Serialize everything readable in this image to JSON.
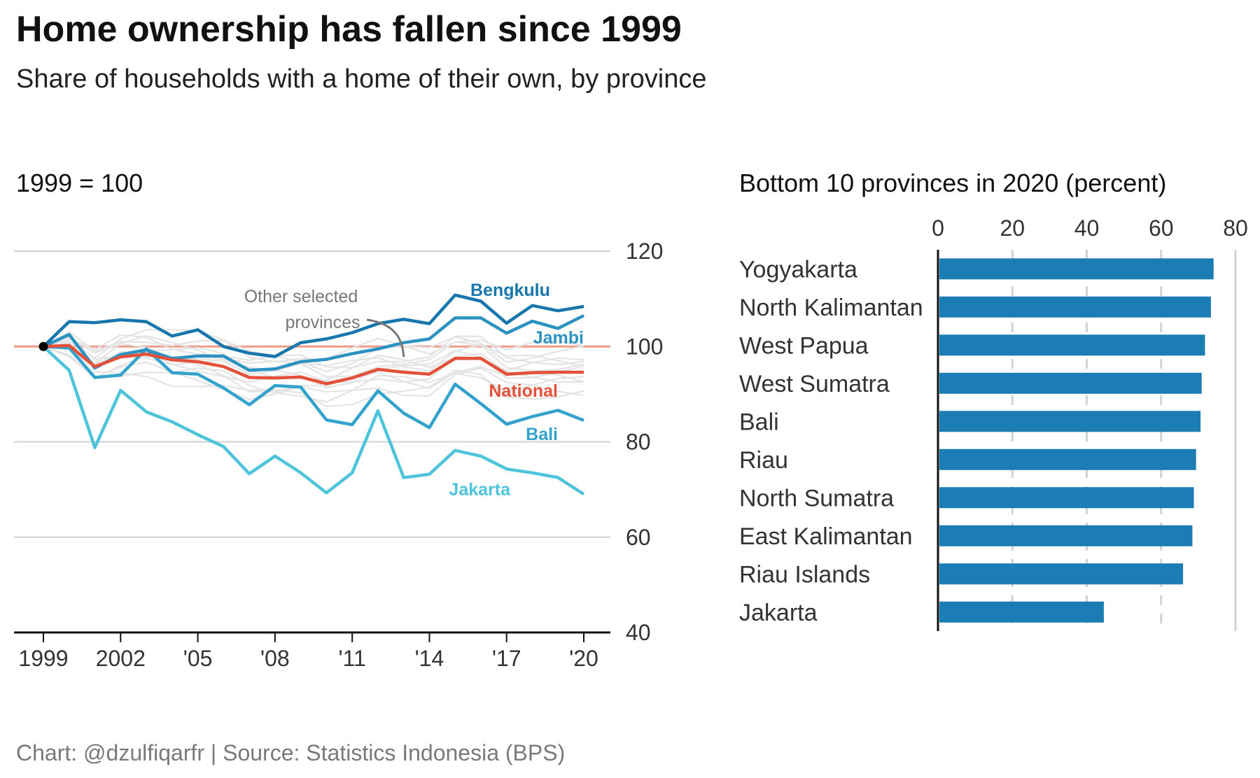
{
  "title": "Home ownership has fallen since 1999",
  "subtitle": "Share of households with a home of their own, by province",
  "source": "Chart: @dzulfiqarfr | Source: Statistics Indonesia (BPS)",
  "colors": {
    "national": "#e4513a",
    "baseline": "#ef9b89",
    "bengkulu": "#1777ad",
    "jambi": "#2b92c2",
    "bali": "#33a2cc",
    "jakarta": "#4ec4db",
    "other": "#e4e4e4",
    "bar": "#1b7db3",
    "grid": "#cdd3d8",
    "axis": "#111111"
  },
  "chart_data": [
    {
      "type": "line",
      "title": "",
      "unit_label": "1999 = 100",
      "xlabel": "",
      "ylabel": "",
      "x": [
        1999,
        2000,
        2001,
        2002,
        2003,
        2004,
        2005,
        2006,
        2007,
        2008,
        2009,
        2010,
        2011,
        2012,
        2013,
        2014,
        2015,
        2016,
        2017,
        2018,
        2019,
        2020
      ],
      "ylim": [
        40,
        120
      ],
      "yticks": [
        40,
        60,
        80,
        100,
        120
      ],
      "xticks": [
        1999,
        2002,
        2005,
        2008,
        2011,
        2014,
        2017,
        2020
      ],
      "xtick_labels": [
        "1999",
        "2002",
        "'05",
        "'08",
        "'11",
        "'14",
        "'17",
        "'20"
      ],
      "baseline": 100,
      "grid": true,
      "annotation": {
        "lines": [
          "Other selected",
          "provinces"
        ],
        "points_to": [
          2013,
          99
        ]
      },
      "series": [
        {
          "name": "Bengkulu",
          "values": [
            100,
            105.2,
            105.0,
            105.6,
            105.2,
            102.2,
            103.5,
            100.0,
            98.6,
            97.9,
            100.8,
            101.6,
            102.9,
            104.8,
            105.7,
            104.8,
            110.8,
            109.5,
            104.9,
            108.6,
            107.5,
            108.4
          ]
        },
        {
          "name": "Jambi",
          "values": [
            100,
            102.5,
            95.5,
            98.3,
            99.3,
            97.5,
            98.0,
            98.0,
            95.0,
            95.3,
            96.8,
            97.3,
            98.5,
            99.5,
            100.8,
            101.6,
            106.0,
            106.0,
            102.8,
            105.3,
            103.8,
            106.5
          ]
        },
        {
          "name": "National",
          "values": [
            100,
            100.2,
            95.8,
            97.8,
            98.4,
            97.2,
            96.8,
            95.8,
            93.5,
            93.4,
            93.6,
            92.2,
            93.4,
            95.2,
            94.6,
            94.2,
            97.5,
            97.5,
            94.2,
            94.5,
            94.6,
            94.6
          ]
        },
        {
          "name": "Bali",
          "values": [
            100,
            99.7,
            93.5,
            94.0,
            99.5,
            94.5,
            94.2,
            91.3,
            87.8,
            91.8,
            91.5,
            84.6,
            83.6,
            90.7,
            86.0,
            83.0,
            92.1,
            88.0,
            83.7,
            85.3,
            86.6,
            84.5
          ]
        },
        {
          "name": "Jakarta",
          "values": [
            100,
            95.0,
            78.8,
            90.8,
            86.3,
            84.2,
            81.5,
            79.0,
            73.3,
            77.0,
            73.5,
            69.3,
            73.5,
            86.5,
            72.5,
            73.2,
            78.2,
            77.0,
            74.3,
            73.5,
            72.5,
            69.0
          ]
        }
      ]
    },
    {
      "type": "bar",
      "orientation": "horizontal",
      "title": "Bottom 10 provinces in 2020 (percent)",
      "xlim": [
        0,
        80
      ],
      "xticks": [
        0,
        20,
        40,
        60,
        80
      ],
      "grid": true,
      "categories": [
        "Yogyakarta",
        "North Kalimantan",
        "West Papua",
        "West Sumatra",
        "Bali",
        "Riau",
        "North Sumatra",
        "East Kalimantan",
        "Riau Islands",
        "Jakarta"
      ],
      "values": [
        74.1,
        73.4,
        71.8,
        70.9,
        70.6,
        69.4,
        68.8,
        68.4,
        65.9,
        44.6
      ]
    }
  ]
}
